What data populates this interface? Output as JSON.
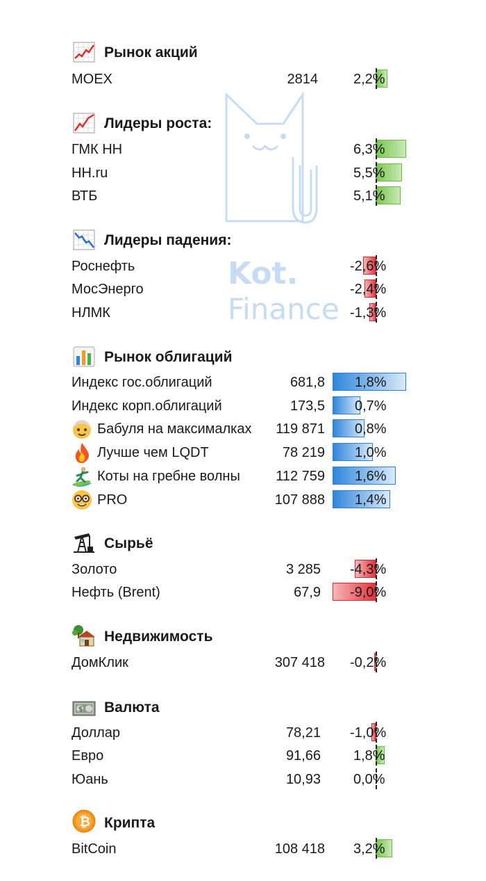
{
  "watermark": {
    "line1": "Kot.",
    "line2": "Finance"
  },
  "sections": {
    "stocks": {
      "title": "Рынок акций",
      "icon": "chart-up-icon",
      "rows": [
        {
          "name": "MOEX",
          "value": "2814",
          "pct": "2,2%",
          "change": 2.2
        }
      ]
    },
    "gainers": {
      "title": "Лидеры роста:",
      "icon": "trend-up-icon",
      "rows": [
        {
          "name": "ГМК НН",
          "value": "",
          "pct": "6,3%",
          "change": 6.3
        },
        {
          "name": "HH.ru",
          "value": "",
          "pct": "5,5%",
          "change": 5.5
        },
        {
          "name": "ВТБ",
          "value": "",
          "pct": "5,1%",
          "change": 5.1
        }
      ]
    },
    "losers": {
      "title": "Лидеры падения:",
      "icon": "chart-down-icon",
      "rows": [
        {
          "name": "Роснефть",
          "value": "",
          "pct": "-2,6%",
          "change": -2.6
        },
        {
          "name": "МосЭнерго",
          "value": "",
          "pct": "-2,4%",
          "change": -2.4
        },
        {
          "name": "НЛМК",
          "value": "",
          "pct": "-1,3%",
          "change": -1.3
        }
      ]
    },
    "bonds": {
      "title": "Рынок облигаций",
      "icon": "bar-chart-icon",
      "rows": [
        {
          "name": "Индекс гос.облигаций",
          "value": "681,8",
          "pct": "1,8%",
          "change": 1.8,
          "icon": ""
        },
        {
          "name": "Индекс корп.облигаций",
          "value": "173,5",
          "pct": "0,7%",
          "change": 0.7,
          "icon": ""
        },
        {
          "name": "Бабуля на максималках",
          "value": "119 871",
          "pct": "0,8%",
          "change": 0.8,
          "icon": "grandma-icon"
        },
        {
          "name": "Лучше чем LQDT",
          "value": "78 219",
          "pct": "1,0%",
          "change": 1.0,
          "icon": "fire-icon"
        },
        {
          "name": "Коты на гребне волны",
          "value": "112 759",
          "pct": "1,6%",
          "change": 1.6,
          "icon": "surfer-icon"
        },
        {
          "name": "PRO",
          "value": "107 888",
          "pct": "1,4%",
          "change": 1.4,
          "icon": "nerd-face-icon"
        }
      ]
    },
    "commodities": {
      "title": "Сырьё",
      "icon": "oil-pump-icon",
      "rows": [
        {
          "name": "Золото",
          "value": "3 285",
          "pct": "-4,3%",
          "change": -4.3
        },
        {
          "name": "Нефть (Brent)",
          "value": "67,9",
          "pct": "-9,0%",
          "change": -9.0
        }
      ]
    },
    "realty": {
      "title": "Недвижимость",
      "icon": "house-icon",
      "rows": [
        {
          "name": "ДомКлик",
          "value": "307 418",
          "pct": "-0,2%",
          "change": -0.2
        }
      ]
    },
    "currency": {
      "title": "Валюта",
      "icon": "banknote-icon",
      "rows": [
        {
          "name": "Доллар",
          "value": "78,21",
          "pct": "-1,0%",
          "change": -1.0
        },
        {
          "name": "Евро",
          "value": "91,66",
          "pct": "1,8%",
          "change": 1.8
        },
        {
          "name": "Юань",
          "value": "10,93",
          "pct": "0,0%",
          "change": 0.0
        }
      ]
    },
    "crypto": {
      "title": "Крипта",
      "icon": "bitcoin-icon",
      "rows": [
        {
          "name": "BitCoin",
          "value": "108 418",
          "pct": "3,2%",
          "change": 3.2
        }
      ]
    }
  },
  "colors": {
    "positive": "#79c64f",
    "negative": "#e3333c",
    "bond": "#2f86dc",
    "watermark": "#c7dcf2"
  }
}
